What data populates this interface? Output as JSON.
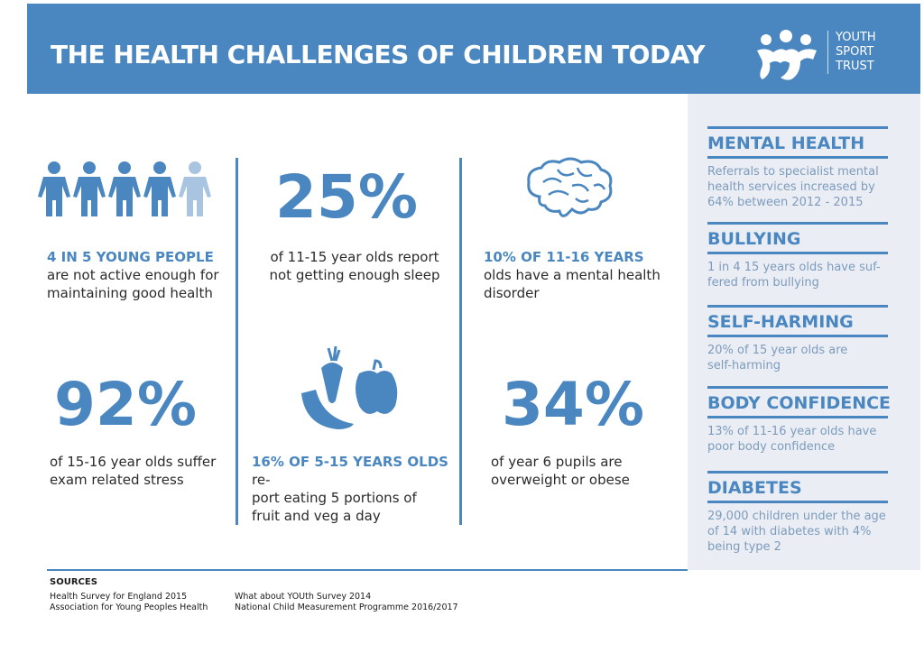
{
  "header": {
    "title": "THE HEALTH CHALLENGES OF CHILDREN TODAY",
    "logo_lines": [
      "YOUTH",
      "SPORT",
      "TRUST"
    ]
  },
  "stats": {
    "active": {
      "highlight": "4 IN 5 YOUNG PEOPLE",
      "text_lines": [
        "are not active enough for",
        "maintaining good health"
      ],
      "icon": "people-icon",
      "people_total": 5,
      "people_highlighted": 4
    },
    "sleep": {
      "value": "25%",
      "text_lines": [
        "of 11-15 year olds report",
        "not getting enough sleep"
      ]
    },
    "mental": {
      "highlight": "10% OF 11-16 YEARS",
      "text_lines": [
        "olds have a mental health",
        "disorder"
      ],
      "icon": "brain-icon"
    },
    "stress": {
      "value": "92%",
      "text_lines": [
        "of 15-16 year olds suffer",
        "exam related stress"
      ]
    },
    "fruit": {
      "highlight": "16% OF 5-15 YEARS OLDS",
      "text_lines": [
        "re-",
        "port eating 5 portions of",
        "fruit and veg a day"
      ],
      "icon": "fruit-veg-icon"
    },
    "obese": {
      "value": "34%",
      "text_lines": [
        "of year 6 pupils are",
        "overweight or obese"
      ]
    }
  },
  "sidebar": [
    {
      "heading": "MENTAL HEALTH",
      "lines": [
        "Referrals to specialist mental",
        "health services increased by",
        "64% between 2012 - 2015"
      ]
    },
    {
      "heading": "BULLYING",
      "lines": [
        "1 in 4 15 years olds have suf-",
        "fered from bullying"
      ]
    },
    {
      "heading": "SELF-HARMING",
      "lines": [
        "20% of 15 year olds are",
        "self-harming"
      ]
    },
    {
      "heading": "BODY CONFIDENCE",
      "lines": [
        "13% of 11-16 year olds have",
        "poor body confidence"
      ]
    },
    {
      "heading": "DIABETES",
      "lines": [
        "29,000 children under the age",
        "of 14 with diabetes with 4%",
        "being type 2"
      ]
    }
  ],
  "sources": {
    "title": "SOURCES",
    "col1": [
      "Health Survey for England 2015",
      "Association for Young Peoples Health"
    ],
    "col2": [
      "What about YOUth Survey 2014",
      "National Child Measurement Programme 2016/2017"
    ]
  },
  "colors": {
    "accent": "#4a86c0",
    "faded_person": "#a9c4e1",
    "sidebar_bg": "#eaeef4",
    "sidebar_text": "#7d9bbd"
  }
}
